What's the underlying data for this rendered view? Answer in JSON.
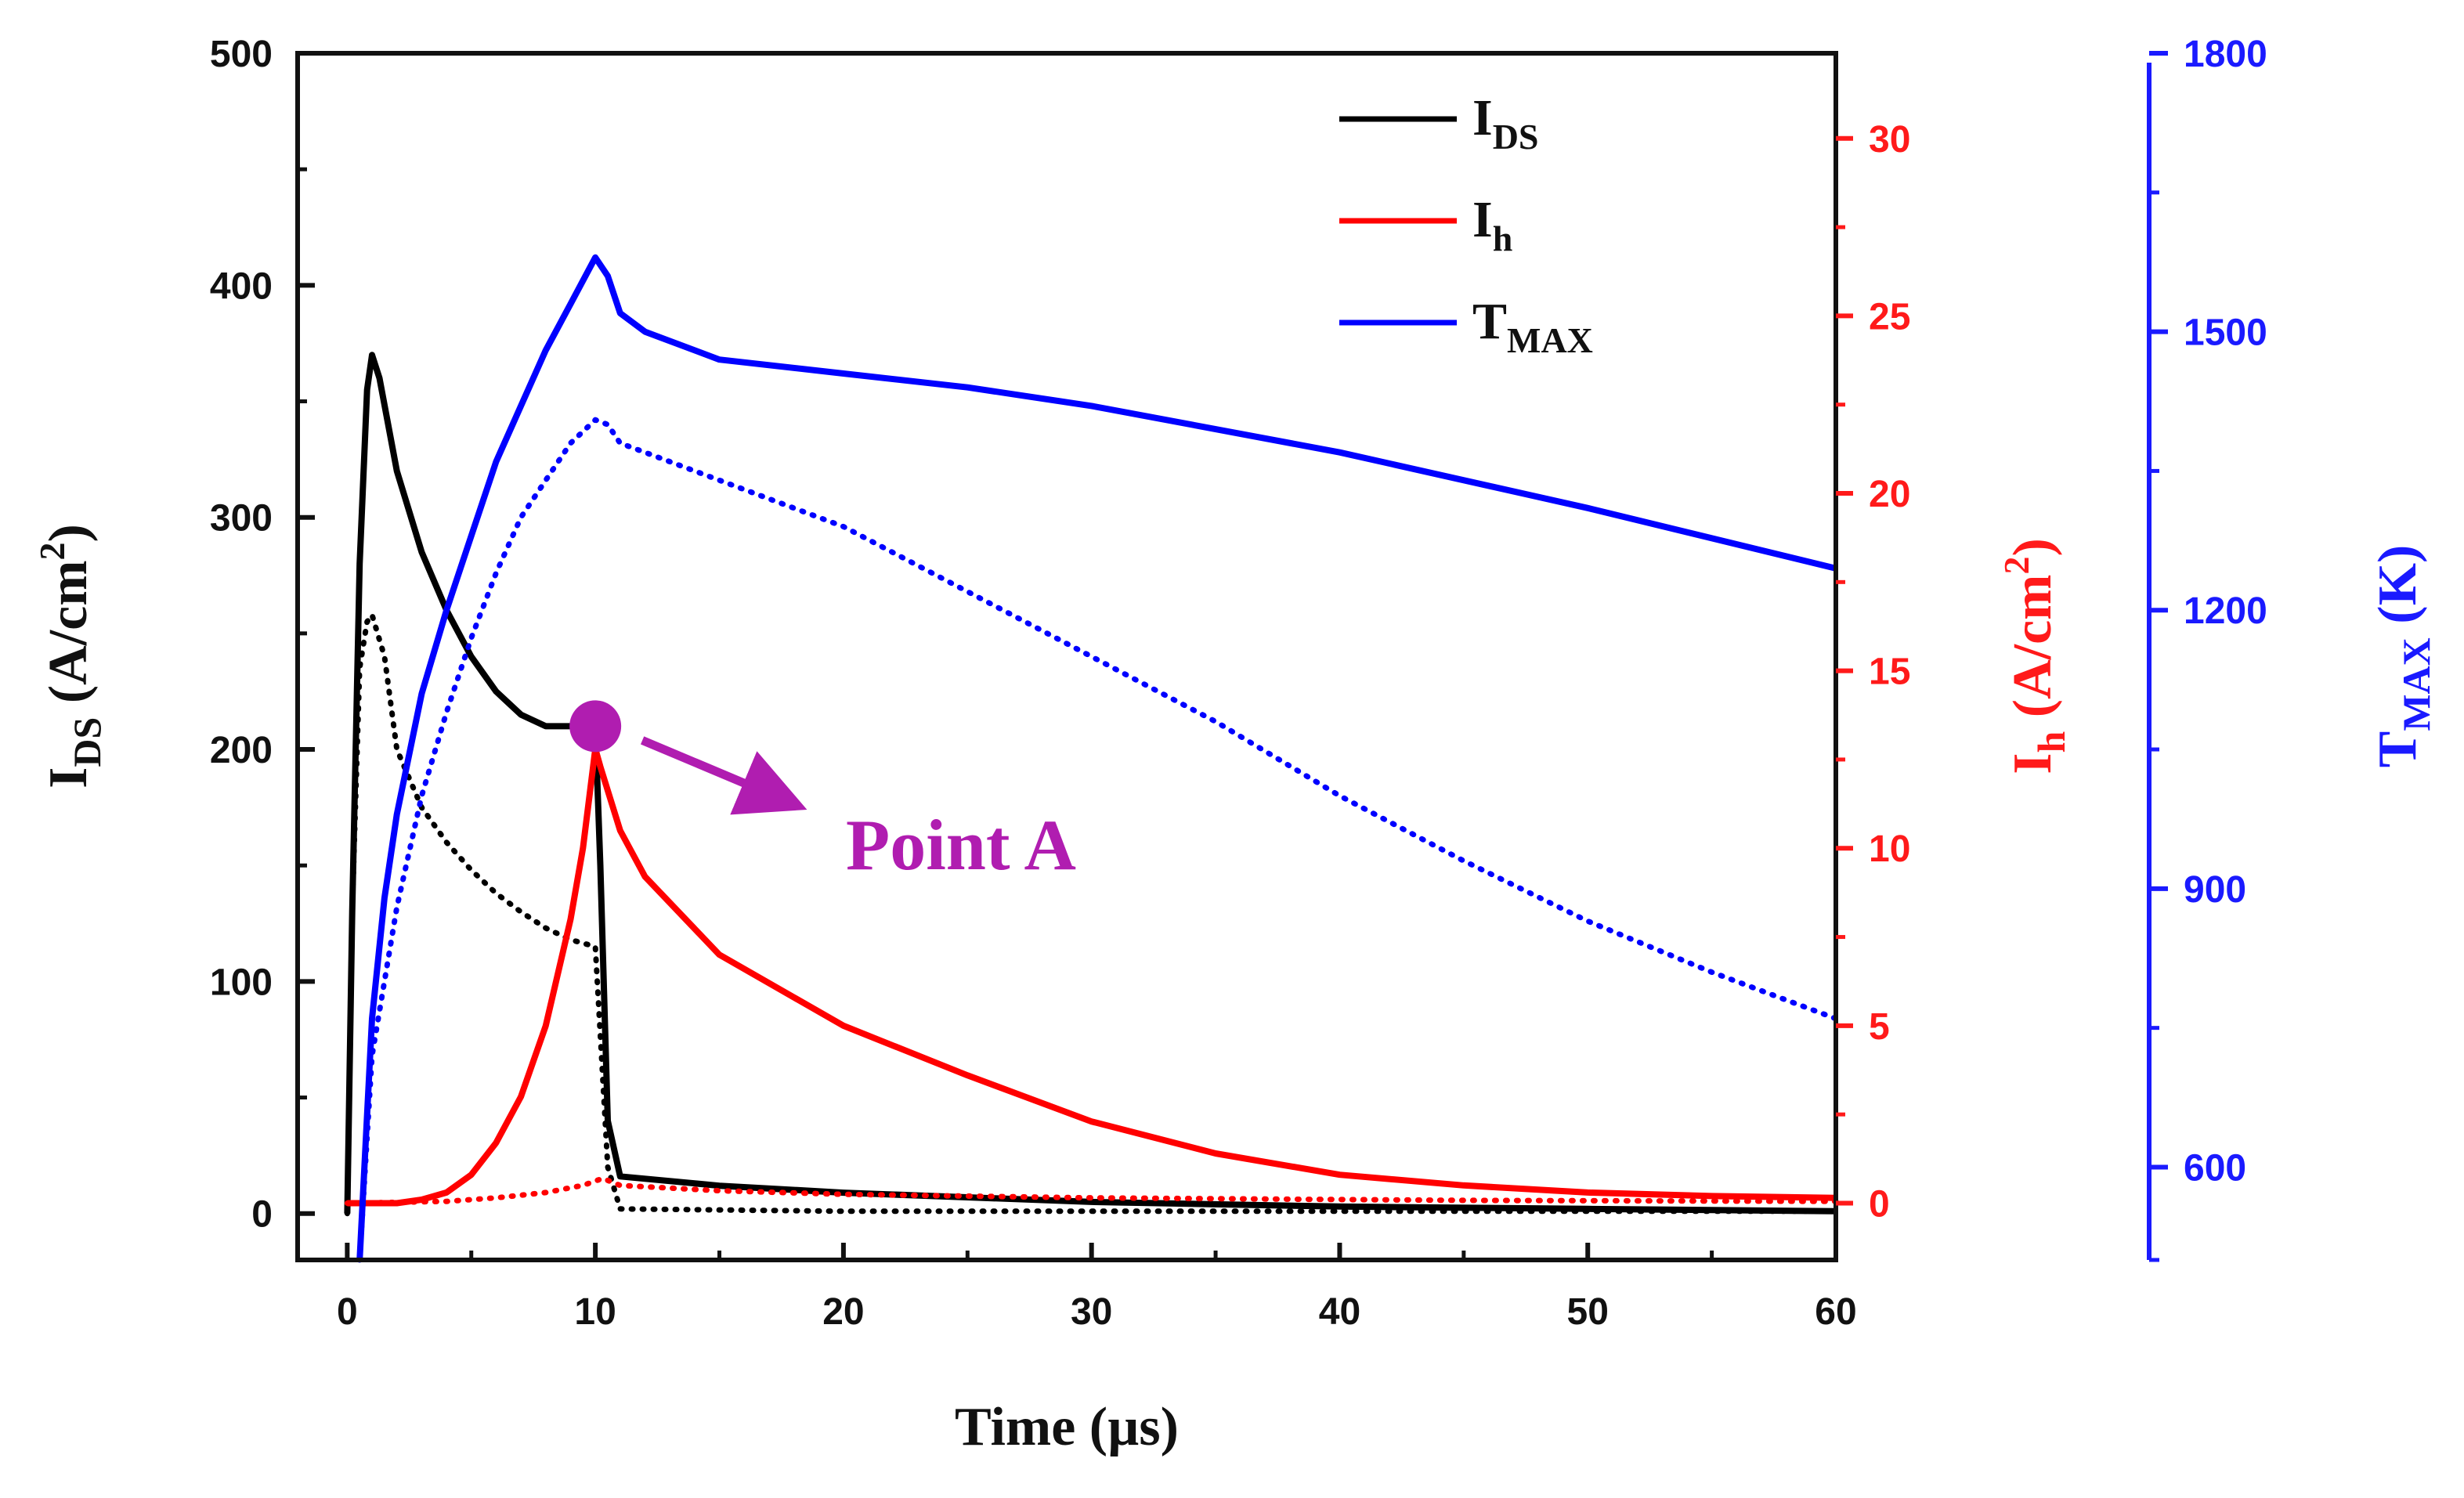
{
  "chart_data": {
    "type": "line",
    "x": {
      "label": "Time (µs)",
      "range": [
        -2,
        60
      ],
      "ticks": [
        0,
        10,
        20,
        30,
        40,
        50,
        60
      ],
      "tick_labels": [
        "0",
        "10",
        "20",
        "30",
        "40",
        "50",
        "60"
      ]
    },
    "axes": {
      "left": {
        "label_main": "I",
        "label_sub": "DS",
        "label_rest": " (A/cm",
        "label_sup": "2",
        "label_end": ")",
        "range": [
          -20,
          500
        ],
        "ticks": [
          0,
          100,
          200,
          300,
          400,
          500
        ],
        "tick_labels": [
          "0",
          "100",
          "200",
          "300",
          "400",
          "500"
        ],
        "color": "#111111"
      },
      "right": {
        "label_main": "I",
        "label_sub": "h",
        "label_rest": " (A/cm",
        "label_sup": "2",
        "label_end": ")",
        "range": [
          -1.6,
          32.4
        ],
        "ticks": [
          0,
          5,
          10,
          15,
          20,
          25,
          30
        ],
        "tick_labels": [
          "0",
          "5",
          "10",
          "15",
          "20",
          "25",
          "30"
        ],
        "color": "#ff1a1a"
      },
      "far_right": {
        "label_main": "T",
        "label_sub": "MAX",
        "label_rest": " (K)",
        "range": [
          500,
          1800
        ],
        "ticks": [
          600,
          900,
          1200,
          1500,
          1800
        ],
        "tick_labels": [
          "600",
          "900",
          "1200",
          "1500",
          "1800"
        ],
        "color": "#1a1aff"
      }
    },
    "series": [
      {
        "name": "IDS",
        "axis": "left",
        "color": "#000000",
        "style": "solid",
        "points": [
          [
            0,
            0
          ],
          [
            0.2,
            130
          ],
          [
            0.5,
            280
          ],
          [
            0.8,
            355
          ],
          [
            1,
            370
          ],
          [
            1.3,
            360
          ],
          [
            2,
            320
          ],
          [
            3,
            285
          ],
          [
            4,
            260
          ],
          [
            5,
            240
          ],
          [
            6,
            225
          ],
          [
            7,
            215
          ],
          [
            8,
            210
          ],
          [
            9,
            210
          ],
          [
            9.5,
            212
          ],
          [
            10,
            210
          ],
          [
            10.2,
            150
          ],
          [
            10.5,
            40
          ],
          [
            11,
            16
          ],
          [
            15,
            12
          ],
          [
            20,
            9
          ],
          [
            30,
            5
          ],
          [
            40,
            3
          ],
          [
            50,
            2
          ],
          [
            60,
            1
          ]
        ]
      },
      {
        "name": "IDS dotted",
        "axis": "left",
        "color": "#000000",
        "style": "dotted",
        "points": [
          [
            0,
            0
          ],
          [
            0.2,
            130
          ],
          [
            0.5,
            235
          ],
          [
            0.8,
            255
          ],
          [
            1,
            258
          ],
          [
            1.5,
            240
          ],
          [
            2,
            200
          ],
          [
            3,
            175
          ],
          [
            4,
            160
          ],
          [
            5,
            148
          ],
          [
            6,
            138
          ],
          [
            7,
            130
          ],
          [
            8,
            123
          ],
          [
            9,
            118
          ],
          [
            10,
            115
          ],
          [
            10.5,
            20
          ],
          [
            11,
            2
          ],
          [
            20,
            1
          ],
          [
            60,
            1
          ]
        ]
      },
      {
        "name": "Ih",
        "axis": "right",
        "color": "#ff0000",
        "style": "solid",
        "points": [
          [
            0,
            0
          ],
          [
            2,
            0
          ],
          [
            3,
            0.1
          ],
          [
            4,
            0.3
          ],
          [
            5,
            0.8
          ],
          [
            6,
            1.7
          ],
          [
            7,
            3
          ],
          [
            8,
            5
          ],
          [
            9,
            8
          ],
          [
            9.5,
            10
          ],
          [
            10,
            12.8
          ],
          [
            10.2,
            12.3
          ],
          [
            11,
            10.5
          ],
          [
            12,
            9.2
          ],
          [
            15,
            7
          ],
          [
            20,
            5
          ],
          [
            25,
            3.6
          ],
          [
            30,
            2.3
          ],
          [
            35,
            1.4
          ],
          [
            40,
            0.8
          ],
          [
            45,
            0.5
          ],
          [
            50,
            0.3
          ],
          [
            55,
            0.2
          ],
          [
            60,
            0.15
          ]
        ]
      },
      {
        "name": "Ih dotted",
        "axis": "right",
        "color": "#ff0000",
        "style": "dotted",
        "points": [
          [
            0,
            0
          ],
          [
            4,
            0.05
          ],
          [
            6,
            0.15
          ],
          [
            8,
            0.3
          ],
          [
            9.5,
            0.5
          ],
          [
            10.3,
            0.7
          ],
          [
            11,
            0.5
          ],
          [
            15,
            0.35
          ],
          [
            20,
            0.25
          ],
          [
            30,
            0.15
          ],
          [
            45,
            0.08
          ],
          [
            60,
            0.05
          ]
        ]
      },
      {
        "name": "TMAX",
        "axis": "far_right",
        "color": "#0000ff",
        "style": "solid",
        "points": [
          [
            0.5,
            500
          ],
          [
            1,
            760
          ],
          [
            1.5,
            890
          ],
          [
            2,
            980
          ],
          [
            3,
            1110
          ],
          [
            4,
            1200
          ],
          [
            5,
            1280
          ],
          [
            6,
            1360
          ],
          [
            7,
            1420
          ],
          [
            8,
            1480
          ],
          [
            9,
            1530
          ],
          [
            10,
            1580
          ],
          [
            10.5,
            1560
          ],
          [
            11,
            1520
          ],
          [
            12,
            1500
          ],
          [
            15,
            1470
          ],
          [
            20,
            1455
          ],
          [
            25,
            1440
          ],
          [
            30,
            1420
          ],
          [
            40,
            1370
          ],
          [
            50,
            1310
          ],
          [
            60,
            1245
          ]
        ]
      },
      {
        "name": "TMAX dotted",
        "axis": "far_right",
        "color": "#0000ff",
        "style": "dotted",
        "points": [
          [
            0.5,
            500
          ],
          [
            1,
            720
          ],
          [
            2,
            880
          ],
          [
            3,
            1000
          ],
          [
            4,
            1090
          ],
          [
            5,
            1170
          ],
          [
            6,
            1240
          ],
          [
            7,
            1300
          ],
          [
            8,
            1340
          ],
          [
            9,
            1380
          ],
          [
            10,
            1405
          ],
          [
            10.5,
            1400
          ],
          [
            11,
            1380
          ],
          [
            12,
            1370
          ],
          [
            15,
            1340
          ],
          [
            20,
            1290
          ],
          [
            25,
            1220
          ],
          [
            30,
            1150
          ],
          [
            35,
            1080
          ],
          [
            40,
            1000
          ],
          [
            45,
            930
          ],
          [
            50,
            865
          ],
          [
            55,
            810
          ],
          [
            60,
            760
          ]
        ]
      }
    ],
    "legend": {
      "position": "top-right",
      "entries": [
        {
          "main": "I",
          "sub": "DS",
          "color": "#000000"
        },
        {
          "main": "I",
          "sub": "h",
          "color": "#ff0000"
        },
        {
          "main": "T",
          "sub": "MAX",
          "color": "#0000ff"
        }
      ]
    },
    "annotation": {
      "text": "Point A",
      "x": 10,
      "y": 210,
      "axis": "left",
      "color": "#b01db0"
    }
  }
}
